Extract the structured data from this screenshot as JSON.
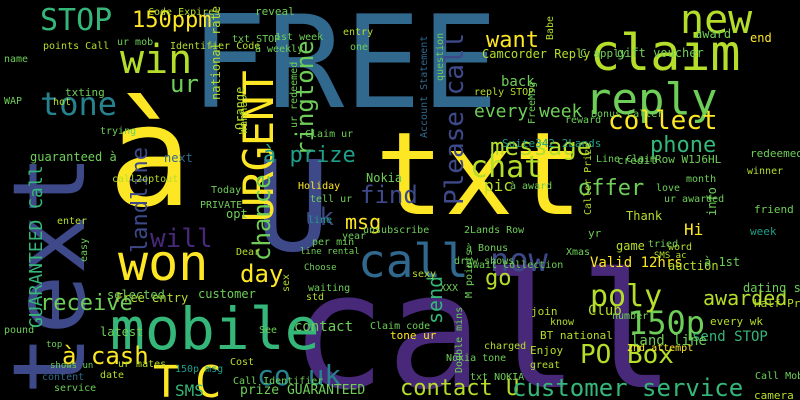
{
  "palette": {
    "background": "#000000",
    "colors": [
      "#fde725",
      "#b5de2b",
      "#6ece58",
      "#35b779",
      "#1f9e89",
      "#26828e",
      "#31688e",
      "#3e4989",
      "#482878",
      "#440154"
    ]
  },
  "words": [
    {
      "text": "FREE",
      "color": "#31688e"
    },
    {
      "text": "text",
      "color": "#3e4989"
    },
    {
      "text": "call",
      "color": "#482878"
    },
    {
      "text": "txt",
      "color": "#fde725"
    },
    {
      "text": "now",
      "color": "#3e4989"
    },
    {
      "text": "à",
      "color": "#fde725"
    },
    {
      "text": "U",
      "color": "#3e4989"
    },
    {
      "text": "mobile",
      "color": "#35b779"
    },
    {
      "text": "claim",
      "color": "#b5de2b"
    },
    {
      "text": "won",
      "color": "#fde725"
    },
    {
      "text": "reply",
      "color": "#6ece58"
    },
    {
      "text": "win",
      "color": "#b5de2b"
    },
    {
      "text": "STOP",
      "color": "#35b779"
    },
    {
      "text": "new",
      "color": "#b5de2b"
    },
    {
      "text": "URGENT",
      "color": "#fde725"
    },
    {
      "text": "Please call",
      "color": "#3e4989"
    },
    {
      "text": "tone",
      "color": "#26828e"
    },
    {
      "text": "call",
      "color": "#31688e"
    },
    {
      "text": "T",
      "color": "#fde725"
    },
    {
      "text": "C",
      "color": "#fde725"
    },
    {
      "text": "150p",
      "color": "#6ece58"
    },
    {
      "text": "now",
      "color": "#3e4989"
    },
    {
      "text": "co uk",
      "color": "#26828e"
    },
    {
      "text": "contact U",
      "color": "#b5de2b"
    },
    {
      "text": "customer service",
      "color": "#35b779"
    },
    {
      "text": "poly",
      "color": "#b5de2b"
    },
    {
      "text": "PO Box",
      "color": "#b5de2b"
    },
    {
      "text": "chat",
      "color": "#b5de2b"
    },
    {
      "text": "ringtone",
      "color": "#6ece58"
    },
    {
      "text": "message",
      "color": "#b5de2b"
    },
    {
      "text": "collect",
      "color": "#fde725"
    },
    {
      "text": "want",
      "color": "#fde725"
    },
    {
      "text": "every week",
      "color": "#6ece58"
    },
    {
      "text": "à prize",
      "color": "#1f9e89"
    },
    {
      "text": "chance",
      "color": "#6ece58"
    },
    {
      "text": "day",
      "color": "#fde725"
    },
    {
      "text": "receive",
      "color": "#6ece58"
    },
    {
      "text": "à cash",
      "color": "#fde725"
    },
    {
      "text": "will",
      "color": "#482878"
    },
    {
      "text": "landline",
      "color": "#3e4989"
    },
    {
      "text": "GUARANTEED Call",
      "color": "#35b779"
    },
    {
      "text": "150ppm",
      "color": "#fde725"
    },
    {
      "text": "uk",
      "color": "#3e4989"
    },
    {
      "text": "find",
      "color": "#3e4989"
    },
    {
      "text": "msg",
      "color": "#fde725"
    },
    {
      "text": "offer",
      "color": "#6ece58"
    },
    {
      "text": "phone",
      "color": "#35b779"
    },
    {
      "text": "go",
      "color": "#b5de2b"
    },
    {
      "text": "send",
      "color": "#35b779"
    },
    {
      "text": "awarded",
      "color": "#b5de2b"
    },
    {
      "text": "SMS",
      "color": "#35b779"
    },
    {
      "text": "ur",
      "color": "#6ece58"
    },
    {
      "text": "Valid 12hrs",
      "color": "#fde725"
    },
    {
      "text": "send STOP",
      "color": "#35b779"
    },
    {
      "text": "land line",
      "color": "#6ece58"
    },
    {
      "text": "Free entry",
      "color": "#b5de2b"
    },
    {
      "text": "customer",
      "color": "#6ece58"
    },
    {
      "text": "selected",
      "color": "#6ece58"
    },
    {
      "text": "latest",
      "color": "#6ece58"
    },
    {
      "text": "prize GUARANTEED",
      "color": "#6ece58"
    },
    {
      "text": "back",
      "color": "#6ece58"
    },
    {
      "text": "pic",
      "color": "#b5de2b"
    },
    {
      "text": "Club",
      "color": "#b5de2b"
    },
    {
      "text": "Hi",
      "color": "#fde725"
    },
    {
      "text": "contact",
      "color": "#6ece58"
    },
    {
      "text": "Camcorder Reply",
      "color": "#b5de2b"
    },
    {
      "text": "gift voucher",
      "color": "#6ece58"
    },
    {
      "text": "auction",
      "color": "#b5de2b"
    },
    {
      "text": "Thank",
      "color": "#b5de2b"
    },
    {
      "text": "Nokia",
      "color": "#6ece58"
    },
    {
      "text": "next",
      "color": "#31688e"
    },
    {
      "text": "opt",
      "color": "#6ece58"
    },
    {
      "text": "Today",
      "color": "#6ece58"
    },
    {
      "text": "national rate",
      "color": "#b5de2b"
    },
    {
      "text": "Code Expires",
      "color": "#b5de2b"
    },
    {
      "text": "Holiday",
      "color": "#fde725"
    },
    {
      "text": "Orange",
      "color": "#b5de2b"
    },
    {
      "text": "Wanna",
      "color": "#b5de2b"
    },
    {
      "text": "entry",
      "color": "#b5de2b"
    },
    {
      "text": "points Call",
      "color": "#b5de2b"
    },
    {
      "text": "Suite342 2Lands",
      "color": "#1f9e89"
    },
    {
      "text": "unsubscribe",
      "color": "#6ece58"
    },
    {
      "text": "Xmas",
      "color": "#6ece58"
    },
    {
      "text": "2Lands Row",
      "color": "#6ece58"
    },
    {
      "text": "à Bonus",
      "color": "#6ece58"
    },
    {
      "text": "game",
      "color": "#b5de2b"
    },
    {
      "text": "info",
      "color": "#6ece58"
    },
    {
      "text": "week",
      "color": "#1f9e89"
    },
    {
      "text": "friend",
      "color": "#6ece58"
    },
    {
      "text": "à 1st",
      "color": "#6ece58"
    },
    {
      "text": "dating service",
      "color": "#6ece58"
    },
    {
      "text": "Half Price",
      "color": "#b5de2b"
    },
    {
      "text": "every wk",
      "color": "#b5de2b"
    },
    {
      "text": "redeemed S",
      "color": "#6ece58"
    },
    {
      "text": "winner",
      "color": "#b5de2b"
    },
    {
      "text": "credit",
      "color": "#6ece58"
    },
    {
      "text": "award",
      "color": "#6ece58"
    },
    {
      "text": "end",
      "color": "#fde725"
    },
    {
      "text": "reveal",
      "color": "#6ece58"
    },
    {
      "text": "à weekly",
      "color": "#6ece58"
    },
    {
      "text": "1st week",
      "color": "#6ece58"
    },
    {
      "text": "txt STOP",
      "color": "#6ece58"
    },
    {
      "text": "one",
      "color": "#6ece58"
    },
    {
      "text": "C apply",
      "color": "#6ece58"
    },
    {
      "text": "reply STOP",
      "color": "#b5de2b"
    },
    {
      "text": "Account Statement",
      "color": "#31688e"
    },
    {
      "text": "Bonus Caller",
      "color": "#6ece58"
    },
    {
      "text": "reward",
      "color": "#6ece58"
    },
    {
      "text": "Babe",
      "color": "#b5de2b"
    },
    {
      "text": "question",
      "color": "#6ece58"
    },
    {
      "text": "FreeMsg",
      "color": "#6ece58"
    },
    {
      "text": "txting",
      "color": "#6ece58"
    },
    {
      "text": "trying",
      "color": "#6ece58"
    },
    {
      "text": "guaranteed à",
      "color": "#6ece58"
    },
    {
      "text": "call2optout",
      "color": "#b5de2b"
    },
    {
      "text": "Identifier Code",
      "color": "#b5de2b"
    },
    {
      "text": "ur mob",
      "color": "#6ece58"
    },
    {
      "text": "name",
      "color": "#6ece58"
    },
    {
      "text": "WAP",
      "color": "#6ece58"
    },
    {
      "text": "hot",
      "color": "#b5de2b"
    },
    {
      "text": "enter",
      "color": "#b5de2b"
    },
    {
      "text": "easy",
      "color": "#6ece58"
    },
    {
      "text": "PRIVATE",
      "color": "#6ece58"
    },
    {
      "text": "pound",
      "color": "#6ece58"
    },
    {
      "text": "top",
      "color": "#6ece58"
    },
    {
      "text": "shows un",
      "color": "#6ece58"
    },
    {
      "text": "content",
      "color": "#31688e"
    },
    {
      "text": "date",
      "color": "#b5de2b"
    },
    {
      "text": "service",
      "color": "#6ece58"
    },
    {
      "text": "ur mates",
      "color": "#b5de2b"
    },
    {
      "text": "150p msg",
      "color": "#1f9e89"
    },
    {
      "text": "Cost",
      "color": "#b5de2b"
    },
    {
      "text": "Call Identifier",
      "color": "#6ece58"
    },
    {
      "text": "sex",
      "color": "#b5de2b"
    },
    {
      "text": "See",
      "color": "#6ece58"
    },
    {
      "text": "std",
      "color": "#b5de2b"
    },
    {
      "text": "waiting",
      "color": "#6ece58"
    },
    {
      "text": "line rental",
      "color": "#6ece58"
    },
    {
      "text": "Choose",
      "color": "#6ece58"
    },
    {
      "text": "per min",
      "color": "#6ece58"
    },
    {
      "text": "Dear",
      "color": "#b5de2b"
    },
    {
      "text": "tell ur",
      "color": "#6ece58"
    },
    {
      "text": "Claim code",
      "color": "#6ece58"
    },
    {
      "text": "tone ur",
      "color": "#fde725"
    },
    {
      "text": "Nokia tone",
      "color": "#6ece58"
    },
    {
      "text": "charged",
      "color": "#b5de2b"
    },
    {
      "text": "great",
      "color": "#b5de2b"
    },
    {
      "text": "Enjoy",
      "color": "#b5de2b"
    },
    {
      "text": "BT national",
      "color": "#b5de2b"
    },
    {
      "text": "know",
      "color": "#b5de2b"
    },
    {
      "text": "join",
      "color": "#b5de2b"
    },
    {
      "text": "number",
      "color": "#6ece58"
    },
    {
      "text": "2nd attempt",
      "color": "#fde725"
    },
    {
      "text": "Call MobileUpd8",
      "color": "#6ece58"
    },
    {
      "text": "camera phone",
      "color": "#b5de2b"
    },
    {
      "text": "SMS ac",
      "color": "#b5de2b"
    },
    {
      "text": "word",
      "color": "#b5de2b"
    },
    {
      "text": "draw shows",
      "color": "#6ece58"
    },
    {
      "text": "à award",
      "color": "#6ece58"
    },
    {
      "text": "await collection",
      "color": "#6ece58"
    },
    {
      "text": "sexy",
      "color": "#b5de2b"
    },
    {
      "text": "XXX",
      "color": "#6ece58"
    },
    {
      "text": "ur awarded",
      "color": "#6ece58"
    },
    {
      "text": "month",
      "color": "#6ece58"
    },
    {
      "text": "Row W1J6HL",
      "color": "#6ece58"
    },
    {
      "text": "Line Claim",
      "color": "#6ece58"
    },
    {
      "text": "Caller Prize",
      "color": "#b5de2b"
    },
    {
      "text": "love",
      "color": "#6ece58"
    },
    {
      "text": "year",
      "color": "#6ece58"
    },
    {
      "text": "line",
      "color": "#1f9e89"
    },
    {
      "text": "ur redeemed",
      "color": "#6ece58"
    },
    {
      "text": "Claim ur",
      "color": "#6ece58"
    },
    {
      "text": "Double mins",
      "color": "#6ece58"
    },
    {
      "text": "txt NOKIA",
      "color": "#6ece58"
    },
    {
      "text": "M points",
      "color": "#6ece58"
    },
    {
      "text": "yr",
      "color": "#6ece58"
    },
    {
      "text": "tried",
      "color": "#6ece58"
    },
    {
      "text": "prize",
      "color": "#b5de2b"
    },
    {
      "text": "F",
      "color": "#6ece58"
    }
  ]
}
